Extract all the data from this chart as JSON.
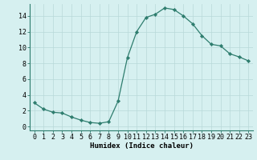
{
  "x": [
    0,
    1,
    2,
    3,
    4,
    5,
    6,
    7,
    8,
    9,
    10,
    11,
    12,
    13,
    14,
    15,
    16,
    17,
    18,
    19,
    20,
    21,
    22,
    23
  ],
  "y": [
    3.0,
    2.2,
    1.8,
    1.7,
    1.2,
    0.8,
    0.5,
    0.4,
    0.6,
    3.2,
    8.7,
    12.0,
    13.8,
    14.2,
    15.0,
    14.8,
    14.0,
    13.0,
    11.5,
    10.4,
    10.2,
    9.2,
    8.8,
    8.3
  ],
  "line_color": "#2e7d6e",
  "marker": "D",
  "marker_size": 2.2,
  "bg_color": "#d6f0f0",
  "grid_color": "#b8d8d8",
  "xlabel": "Humidex (Indice chaleur)",
  "xlim": [
    -0.5,
    23.5
  ],
  "ylim": [
    -0.5,
    15.5
  ],
  "yticks": [
    0,
    2,
    4,
    6,
    8,
    10,
    12,
    14
  ],
  "xtick_labels": [
    "0",
    "1",
    "2",
    "3",
    "4",
    "5",
    "6",
    "7",
    "8",
    "9",
    "10",
    "11",
    "12",
    "13",
    "14",
    "15",
    "16",
    "17",
    "18",
    "19",
    "20",
    "21",
    "22",
    "23"
  ],
  "xlabel_fontsize": 6.5,
  "tick_fontsize": 6.0
}
